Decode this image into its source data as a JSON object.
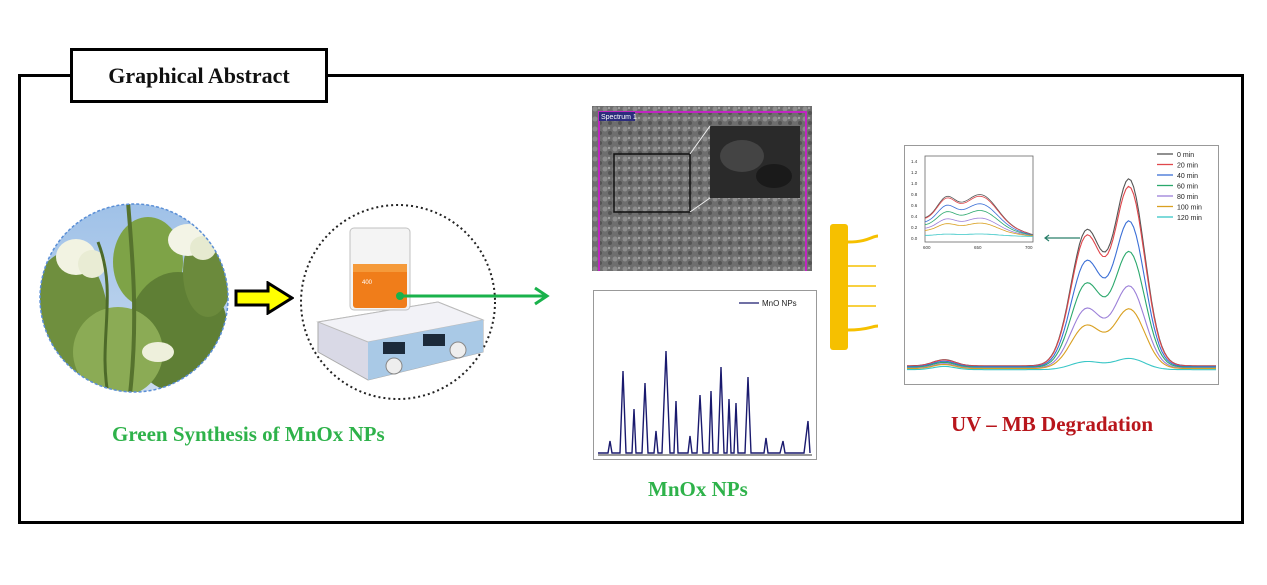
{
  "header": {
    "title": "Graphical Abstract"
  },
  "captions": {
    "green_synthesis": "Green Synthesis of MnOx NPs",
    "mnox": "MnOx NPs",
    "uv_mb": "UV – MB Degradation"
  },
  "sem": {
    "label": "Spectrum 1"
  },
  "xrd": {
    "legend": "MnO NPs"
  },
  "uv": {
    "legend": [
      "0 min",
      "20 min",
      "40 min",
      "60 min",
      "80 min",
      "100 min",
      "120 min"
    ],
    "colors": [
      "#555555",
      "#e0474c",
      "#3b6fd6",
      "#2aa86c",
      "#9b7fd8",
      "#d9a021",
      "#39c6c6"
    ],
    "inset_x_ticks": [
      "600",
      "650",
      "700"
    ],
    "inset_y_ticks": [
      "1.4",
      "1.2",
      "1.0",
      "0.8",
      "0.6",
      "0.4",
      "0.2",
      "0.0"
    ]
  },
  "colors": {
    "green": "#2eb24a",
    "red": "#b8161c",
    "arrow_yellow": "#ffff00",
    "comb": "#f6c000"
  }
}
